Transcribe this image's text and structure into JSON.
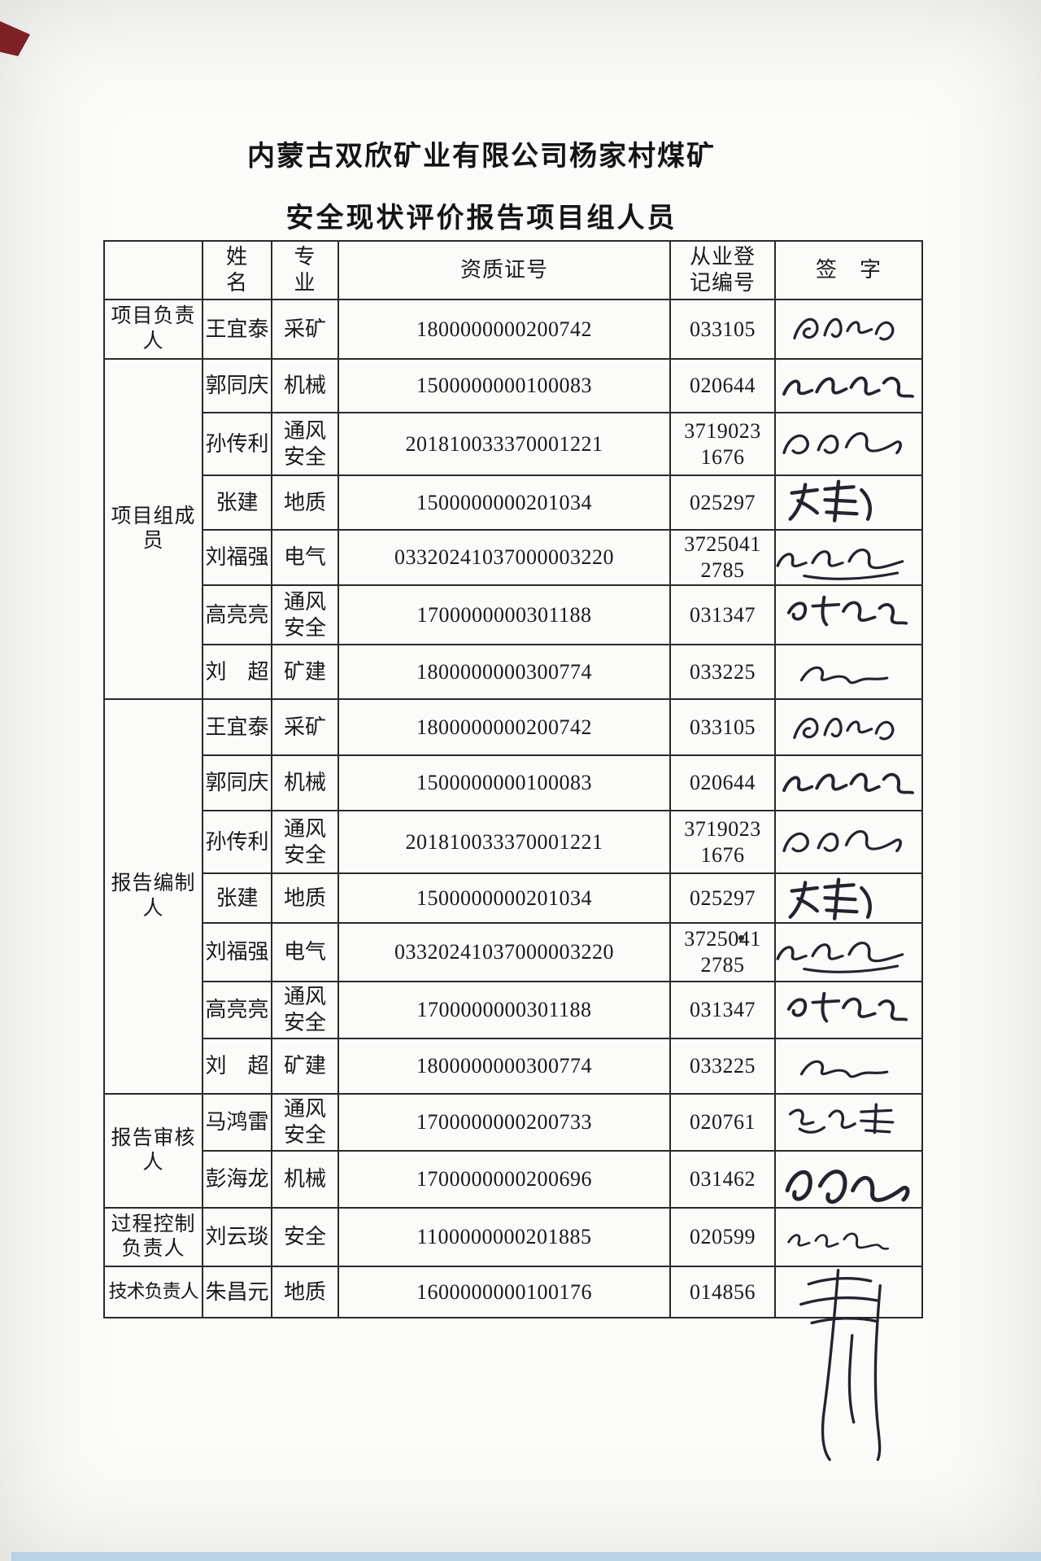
{
  "document": {
    "title_line1": "内蒙古双欣矿业有限公司杨家村煤矿",
    "title_line2": "安全现状评价报告项目组人员"
  },
  "table": {
    "headers": {
      "group": "",
      "name": "姓　名",
      "specialty": "专　业",
      "cert_no": "资质证号",
      "reg_no": "从业登\n记编号",
      "signature": "签　字"
    },
    "groups": [
      {
        "role": "项目负责\n人",
        "members": [
          {
            "name": "王宜泰",
            "specialty": "采矿",
            "cert_no": "1800000000200742",
            "reg_no": "033105",
            "signer": "王宜泰"
          }
        ]
      },
      {
        "role": "项目组成\n员",
        "members": [
          {
            "name": "郭同庆",
            "specialty": "机械",
            "cert_no": "1500000000100083",
            "reg_no": "020644",
            "signer": "郭同庆"
          },
          {
            "name": "孙传利",
            "specialty": "通风\n安全",
            "cert_no": "201810033370001221",
            "reg_no": "3719023\n1676",
            "signer": "孙传利"
          },
          {
            "name": "张建",
            "specialty": "地质",
            "cert_no": "1500000000201034",
            "reg_no": "025297",
            "signer": "张建"
          },
          {
            "name": "刘福强",
            "specialty": "电气",
            "cert_no": "03320241037000003220",
            "reg_no": "3725041\n2785",
            "signer": "刘福强"
          },
          {
            "name": "高亮亮",
            "specialty": "通风\n安全",
            "cert_no": "1700000000301188",
            "reg_no": "031347",
            "signer": "高亮亮"
          },
          {
            "name": "刘　超",
            "specialty": "矿建",
            "cert_no": "1800000000300774",
            "reg_no": "033225",
            "signer": "刘超"
          }
        ]
      },
      {
        "role": "报告编制\n人",
        "members": [
          {
            "name": "王宜泰",
            "specialty": "采矿",
            "cert_no": "1800000000200742",
            "reg_no": "033105",
            "signer": "王宜泰"
          },
          {
            "name": "郭同庆",
            "specialty": "机械",
            "cert_no": "1500000000100083",
            "reg_no": "020644",
            "signer": "郭同庆"
          },
          {
            "name": "孙传利",
            "specialty": "通风\n安全",
            "cert_no": "201810033370001221",
            "reg_no": "3719023\n1676",
            "signer": "孙传利"
          },
          {
            "name": "张建",
            "specialty": "地质",
            "cert_no": "1500000000201034",
            "reg_no": "025297",
            "signer": "张建"
          },
          {
            "name": "刘福强",
            "specialty": "电气",
            "cert_no": "03320241037000003220",
            "reg_no": "3725041\n2785",
            "signer": "刘福强"
          },
          {
            "name": "高亮亮",
            "specialty": "通风\n安全",
            "cert_no": "1700000000301188",
            "reg_no": "031347",
            "signer": "高亮亮"
          },
          {
            "name": "刘　超",
            "specialty": "矿建",
            "cert_no": "1800000000300774",
            "reg_no": "033225",
            "signer": "刘超"
          }
        ]
      },
      {
        "role": "报告审核\n人",
        "members": [
          {
            "name": "马鸿雷",
            "specialty": "通风\n安全",
            "cert_no": "1700000000200733",
            "reg_no": "020761",
            "signer": "马鸿雷"
          },
          {
            "name": "彭海龙",
            "specialty": "机械",
            "cert_no": "1700000000200696",
            "reg_no": "031462",
            "signer": "彭海龙"
          }
        ]
      },
      {
        "role": "过程控制\n负责人",
        "members": [
          {
            "name": "刘云琰",
            "specialty": "安全",
            "cert_no": "1100000000201885",
            "reg_no": "020599",
            "signer": "刘云琰"
          }
        ]
      },
      {
        "role": "技术负责人",
        "members": [
          {
            "name": "朱昌元",
            "specialty": "地质",
            "cert_no": "1600000000100176",
            "reg_no": "014856",
            "signer": "朱昌元"
          }
        ]
      }
    ]
  }
}
